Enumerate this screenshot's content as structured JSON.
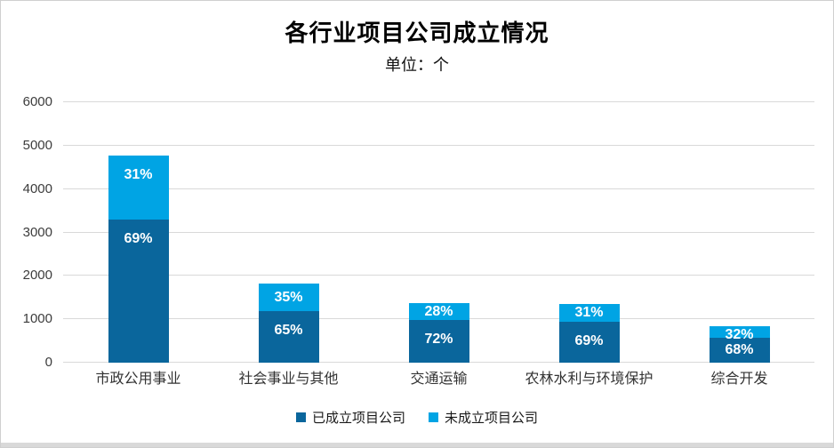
{
  "chart_data": {
    "type": "bar",
    "stacked": true,
    "title": "各行业项目公司成立情况",
    "subtitle": "单位：个",
    "categories": [
      "市政公用事业",
      "社会事业与其他",
      "交通运输",
      "农林水利与环境保护",
      "综合开发"
    ],
    "series": [
      {
        "name": "已成立项目公司",
        "color": "#0a669c",
        "values": [
          3300,
          1185,
          990,
          935,
          570
        ],
        "pct_labels": [
          "69%",
          "65%",
          "72%",
          "69%",
          "68%"
        ]
      },
      {
        "name": "未成立项目公司",
        "color": "#00a4e4",
        "values": [
          1480,
          635,
          385,
          420,
          270
        ],
        "pct_labels": [
          "31%",
          "35%",
          "28%",
          "31%",
          "32%"
        ]
      }
    ],
    "totals": [
      4780,
      1820,
      1375,
      1355,
      840
    ],
    "ylim": [
      0,
      6000
    ],
    "yticks": [
      0,
      1000,
      2000,
      3000,
      4000,
      5000,
      6000
    ],
    "grid": "horizontal",
    "grid_color": "#d9d9d9",
    "label_color": "#ffffff",
    "legend_position": "bottom"
  }
}
